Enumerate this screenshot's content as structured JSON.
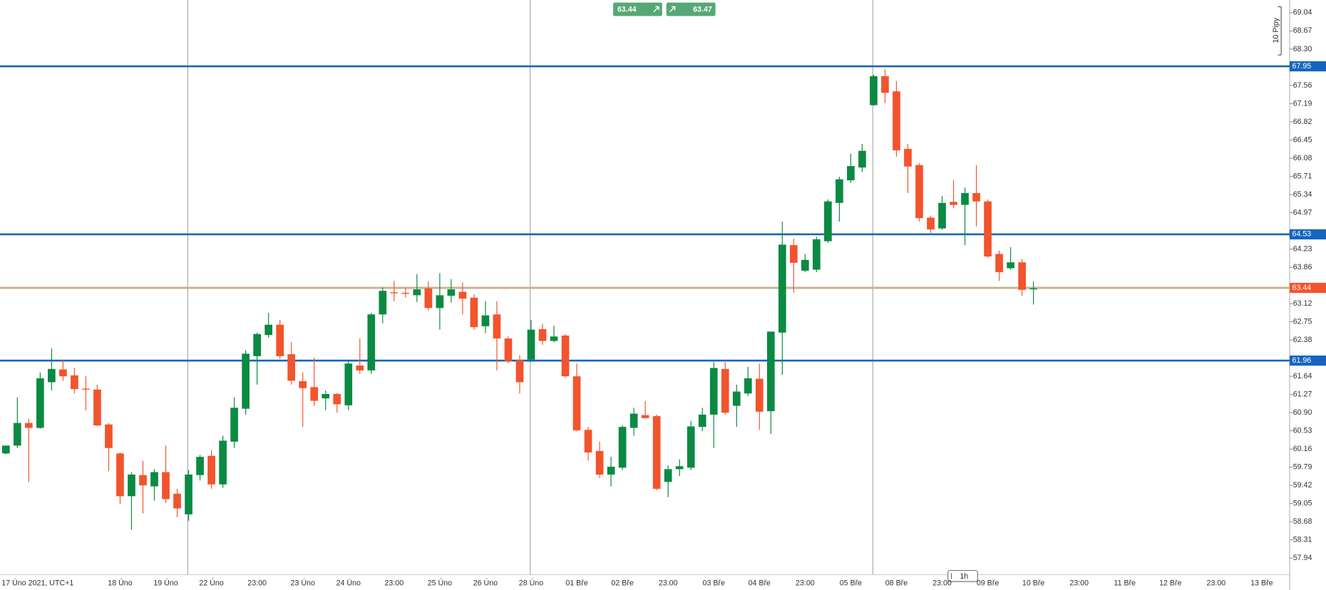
{
  "chart_data": {
    "type": "candlestick",
    "open": [
      60.07,
      60.23,
      60.69,
      60.59,
      61.52,
      61.78,
      61.66,
      61.39,
      61.37,
      60.66,
      60.07,
      59.2,
      59.63,
      59.4,
      59.69,
      59.25,
      58.83,
      59.63,
      60.02,
      59.44,
      60.31,
      60.98,
      62.05,
      62.48,
      62.69,
      62.09,
      61.54,
      61.42,
      61.19,
      61.28,
      61.05,
      61.86,
      61.76,
      62.9,
      63.35,
      63.34,
      63.29,
      63.43,
      63.03,
      63.28,
      63.36,
      63.24,
      62.66,
      62.9,
      62.41,
      61.97,
      61.98,
      62.6,
      62.36,
      62.47,
      61.64,
      60.55,
      60.12,
      59.64,
      59.78,
      60.59,
      60.85,
      60.83,
      59.49,
      59.75,
      59.78,
      60.61,
      60.86,
      61.79,
      61.04,
      61.29,
      61.59,
      60.93,
      62.53,
      64.31,
      63.79,
      63.81,
      64.39,
      65.17,
      65.63,
      65.89,
      67.16,
      67.75,
      67.44,
      66.27,
      65.94,
      64.87,
      64.65,
      65.19,
      65.13,
      65.37,
      65.2,
      64.13,
      63.84,
      63.96,
      63.41
    ],
    "high": [
      60.23,
      61.21,
      60.78,
      61.72,
      62.21,
      61.98,
      61.81,
      61.64,
      61.47,
      60.69,
      60.09,
      59.69,
      59.92,
      59.75,
      60.23,
      59.35,
      59.73,
      60.04,
      60.14,
      60.43,
      61.21,
      62.17,
      62.53,
      62.93,
      62.79,
      62.33,
      61.72,
      62.02,
      61.35,
      61.3,
      61.95,
      62.41,
      62.93,
      63.45,
      63.58,
      63.45,
      63.72,
      63.57,
      63.74,
      63.62,
      63.55,
      63.31,
      63.17,
      63.17,
      62.45,
      62.07,
      62.79,
      62.71,
      62.67,
      62.5,
      61.9,
      60.61,
      60.31,
      60.0,
      60.64,
      61.0,
      61.14,
      60.86,
      59.83,
      59.95,
      60.73,
      61.0,
      61.93,
      61.93,
      61.47,
      61.83,
      61.9,
      62.55,
      64.79,
      64.44,
      64.13,
      64.48,
      65.24,
      65.7,
      66.17,
      66.37,
      67.78,
      67.89,
      67.65,
      66.37,
      65.98,
      64.91,
      65.31,
      65.63,
      65.48,
      65.94,
      65.24,
      64.2,
      64.27,
      64.03,
      63.57
    ],
    "low": [
      60.05,
      60.18,
      59.49,
      60.57,
      61.35,
      61.55,
      61.29,
      60.95,
      60.62,
      59.71,
      59.04,
      58.52,
      58.85,
      59.11,
      59.06,
      58.77,
      58.7,
      59.52,
      59.35,
      59.37,
      60.18,
      60.86,
      61.47,
      62.43,
      62.0,
      61.47,
      60.61,
      61.04,
      60.95,
      60.9,
      60.95,
      61.69,
      61.69,
      62.72,
      63.17,
      63.24,
      63.15,
      62.98,
      62.59,
      63.14,
      62.9,
      62.59,
      62.52,
      61.76,
      61.9,
      61.29,
      61.93,
      62.28,
      62.33,
      61.62,
      60.52,
      59.92,
      59.57,
      59.4,
      59.73,
      60.43,
      60.78,
      59.32,
      59.18,
      59.61,
      59.73,
      60.52,
      60.18,
      60.86,
      60.61,
      61.24,
      60.55,
      60.47,
      61.67,
      63.34,
      63.76,
      63.76,
      64.36,
      64.79,
      65.58,
      65.8,
      67.15,
      67.2,
      66.11,
      65.37,
      64.79,
      64.56,
      64.62,
      65.06,
      64.31,
      64.69,
      64.05,
      63.58,
      63.81,
      63.28,
      63.1
    ],
    "close": [
      60.23,
      60.69,
      60.59,
      61.6,
      61.79,
      61.64,
      61.38,
      61.37,
      60.64,
      60.18,
      59.2,
      59.64,
      59.42,
      59.69,
      59.14,
      58.95,
      59.64,
      60.0,
      59.44,
      60.33,
      61.0,
      62.1,
      62.5,
      62.69,
      62.05,
      61.55,
      61.4,
      61.14,
      61.28,
      61.07,
      61.9,
      61.76,
      62.9,
      63.38,
      63.33,
      63.33,
      63.41,
      63.03,
      63.29,
      63.41,
      63.22,
      62.64,
      62.88,
      62.41,
      61.95,
      61.52,
      62.59,
      62.36,
      62.45,
      61.64,
      60.54,
      60.09,
      59.64,
      59.8,
      60.61,
      60.88,
      60.79,
      59.35,
      59.75,
      59.81,
      60.62,
      60.86,
      61.81,
      60.9,
      61.33,
      61.6,
      60.92,
      62.55,
      64.32,
      63.95,
      64.01,
      64.43,
      65.2,
      65.65,
      65.92,
      66.23,
      67.75,
      67.41,
      66.24,
      65.91,
      64.86,
      64.63,
      65.17,
      65.13,
      65.37,
      65.2,
      64.08,
      63.76,
      63.96,
      63.4,
      63.43
    ],
    "up_color": "#0a8a42",
    "down_color": "#f2542d",
    "ylim": [
      57.6,
      69.3
    ],
    "yticks": [
      69.04,
      68.67,
      {
        "value": 68.3,
        "label": "68.30"
      },
      67.56,
      67.19,
      66.82,
      66.45,
      66.08,
      65.71,
      65.34,
      64.97,
      64.23,
      63.86,
      63.12,
      62.75,
      62.38,
      61.64,
      61.27,
      {
        "value": 60.9,
        "label": "60.90"
      },
      60.53,
      60.16,
      59.79,
      59.42,
      59.05,
      58.68,
      58.31,
      57.94
    ],
    "xlim": [
      -0.52,
      112.44
    ],
    "xticks": [
      {
        "value": -0.52,
        "label": "17 Úno 2021, UTC+1"
      },
      {
        "value": 10,
        "label": "18 Úno"
      },
      {
        "value": 14,
        "label": "19 Úno"
      },
      {
        "value": 18,
        "label": "22 Úno"
      },
      {
        "value": 22,
        "label": "23:00"
      },
      {
        "value": 26,
        "label": "23 Úno"
      },
      {
        "value": 30,
        "label": "24 Úno"
      },
      {
        "value": 34,
        "label": "23:00"
      },
      {
        "value": 38,
        "label": "25 Úno"
      },
      {
        "value": 42,
        "label": "26 Úno"
      },
      {
        "value": 46,
        "label": "28 Úno"
      },
      {
        "value": 50,
        "label": "01 Bře"
      },
      {
        "value": 54,
        "label": "02 Bře"
      },
      {
        "value": 58,
        "label": "23:00"
      },
      {
        "value": 62,
        "label": "03 Bře"
      },
      {
        "value": 66,
        "label": "04 Bře"
      },
      {
        "value": 70,
        "label": "23:00"
      },
      {
        "value": 74,
        "label": "05 Bře"
      },
      {
        "value": 78,
        "label": "08 Bře"
      },
      {
        "value": 82,
        "label": "23:00"
      },
      {
        "value": 86,
        "label": "09 Bře"
      },
      {
        "value": 90,
        "label": "10 Bře"
      },
      {
        "value": 94,
        "label": "23:00"
      },
      {
        "value": 98,
        "label": "11 Bře"
      },
      {
        "value": 102,
        "label": "12 Bře"
      },
      {
        "value": 106,
        "label": "23:00"
      },
      {
        "value": 110,
        "label": "13 Bře"
      }
    ],
    "levels": [
      67.95,
      64.53,
      61.96
    ],
    "level_color": "#1565c0",
    "current_price": 63.44,
    "current_price_color": "#f2542d",
    "current_line_color": "#c8b48c",
    "trade_buttons": {
      "sell": 63.44,
      "buy": 63.47
    },
    "button_color": "#55a874",
    "timeframe": "1h",
    "scale_label": "10 Pipy"
  }
}
